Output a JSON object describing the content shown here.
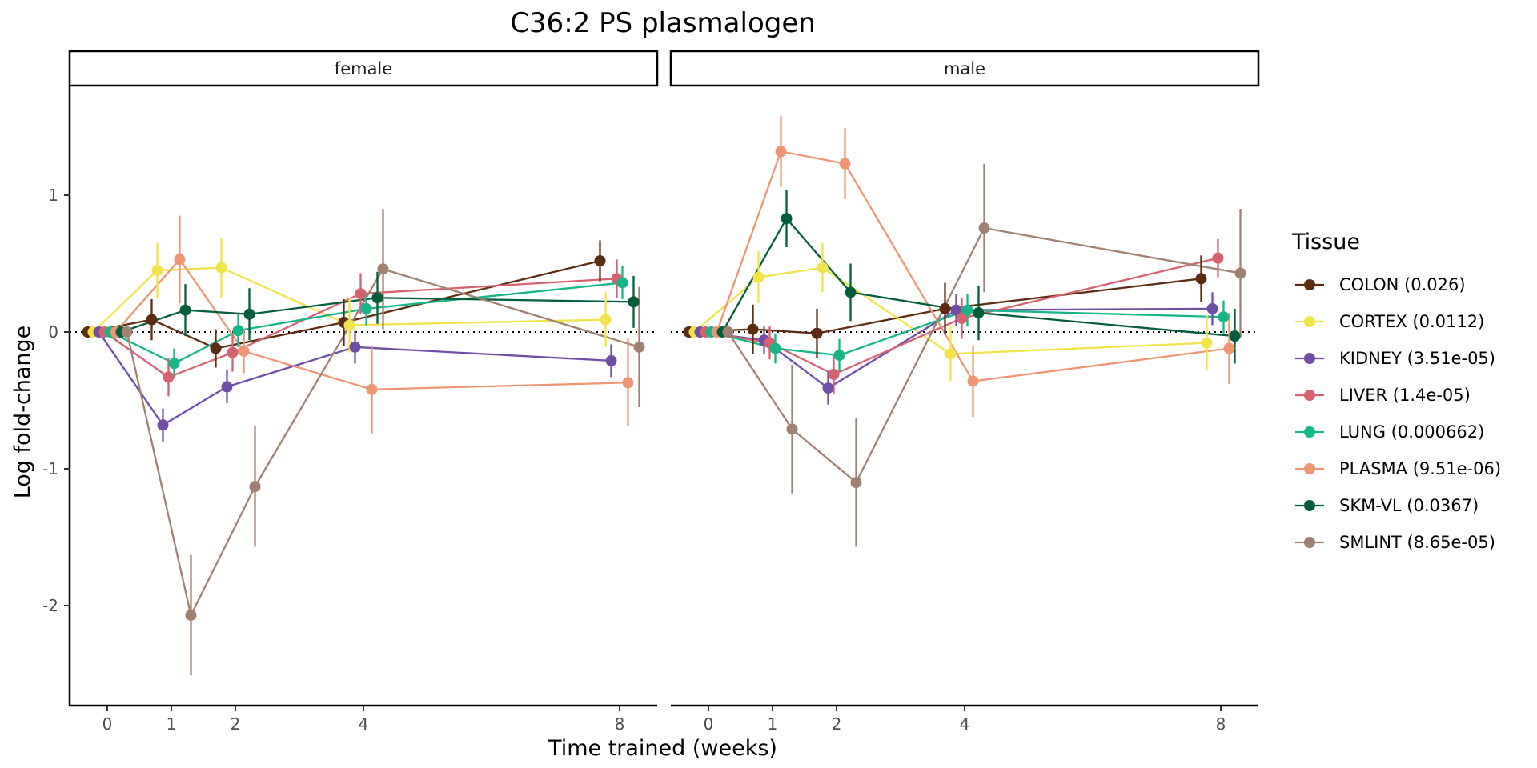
{
  "chart_data": {
    "type": "line",
    "title": "C36:2 PS plasmalogen",
    "xlabel": "Time trained (weeks)",
    "ylabel": "Log fold-change",
    "x_ticks": [
      0,
      1,
      2,
      4,
      8
    ],
    "y_ticks": [
      1,
      0,
      -1,
      -2
    ],
    "ylim": [
      -2.7,
      1.78
    ],
    "reference_line_y": 0,
    "grid": false,
    "facets": [
      "female",
      "male"
    ],
    "legend": {
      "title": "Tissue",
      "position": "right"
    },
    "series": [
      {
        "name": "COLON (0.026)",
        "color": "#5c2c12",
        "female": {
          "x": [
            0,
            1,
            2,
            4,
            8
          ],
          "y": [
            0.0,
            0.09,
            -0.12,
            0.07,
            0.52
          ],
          "err": [
            0.0,
            0.15,
            0.14,
            0.17,
            0.15
          ]
        },
        "male": {
          "x": [
            0,
            1,
            2,
            4,
            8
          ],
          "y": [
            0.0,
            0.02,
            -0.01,
            0.17,
            0.39
          ],
          "err": [
            0.0,
            0.18,
            0.18,
            0.19,
            0.17
          ]
        }
      },
      {
        "name": "CORTEX (0.0112)",
        "color": "#f0e44a",
        "female": {
          "x": [
            0,
            1,
            2,
            4,
            8
          ],
          "y": [
            0.0,
            0.45,
            0.47,
            0.05,
            0.09
          ],
          "err": [
            0.0,
            0.2,
            0.22,
            0.2,
            0.2
          ]
        },
        "male": {
          "x": [
            0,
            1,
            2,
            4,
            8
          ],
          "y": [
            0.0,
            0.4,
            0.47,
            -0.16,
            -0.08
          ],
          "err": [
            0.0,
            0.19,
            0.18,
            0.2,
            0.2
          ]
        }
      },
      {
        "name": "KIDNEY (3.51e-05)",
        "color": "#6f4ea5",
        "female": {
          "x": [
            0,
            1,
            2,
            4,
            8
          ],
          "y": [
            0.0,
            -0.68,
            -0.4,
            -0.11,
            -0.21
          ],
          "err": [
            0.0,
            0.12,
            0.12,
            0.12,
            0.12
          ]
        },
        "male": {
          "x": [
            0,
            1,
            2,
            4,
            8
          ],
          "y": [
            0.0,
            -0.06,
            -0.41,
            0.16,
            0.17
          ],
          "err": [
            0.0,
            0.1,
            0.12,
            0.12,
            0.12
          ]
        }
      },
      {
        "name": "LIVER (1.4e-05)",
        "color": "#d6626f",
        "female": {
          "x": [
            0,
            1,
            2,
            4,
            8
          ],
          "y": [
            0.0,
            -0.33,
            -0.15,
            0.28,
            0.39
          ],
          "err": [
            0.0,
            0.14,
            0.14,
            0.15,
            0.14
          ]
        },
        "male": {
          "x": [
            0,
            1,
            2,
            4,
            8
          ],
          "y": [
            0.0,
            -0.08,
            -0.31,
            0.1,
            0.54
          ],
          "err": [
            0.0,
            0.12,
            0.14,
            0.15,
            0.14
          ]
        }
      },
      {
        "name": "LUNG (0.000662)",
        "color": "#17b689",
        "female": {
          "x": [
            0,
            1,
            2,
            4,
            8
          ],
          "y": [
            0.0,
            -0.23,
            0.01,
            0.17,
            0.36
          ],
          "err": [
            0.0,
            0.11,
            0.12,
            0.12,
            0.12
          ]
        },
        "male": {
          "x": [
            0,
            1,
            2,
            4,
            8
          ],
          "y": [
            0.0,
            -0.12,
            -0.17,
            0.16,
            0.11
          ],
          "err": [
            0.0,
            0.11,
            0.12,
            0.12,
            0.12
          ]
        }
      },
      {
        "name": "PLASMA (9.51e-06)",
        "color": "#ee9674",
        "female": {
          "x": [
            0,
            1,
            2,
            4,
            8
          ],
          "y": [
            0.0,
            0.53,
            -0.14,
            -0.42,
            -0.37
          ],
          "err": [
            0.0,
            0.32,
            0.16,
            0.32,
            0.32
          ]
        },
        "male": {
          "x": [
            0,
            1,
            2,
            4,
            8
          ],
          "y": [
            0.0,
            1.32,
            1.23,
            -0.36,
            -0.12
          ],
          "err": [
            0.0,
            0.26,
            0.26,
            0.26,
            0.26
          ]
        }
      },
      {
        "name": "SKM-VL (0.0367)",
        "color": "#035d3b",
        "female": {
          "x": [
            0,
            1,
            2,
            4,
            8
          ],
          "y": [
            0.0,
            0.16,
            0.13,
            0.25,
            0.22
          ],
          "err": [
            0.0,
            0.19,
            0.19,
            0.19,
            0.19
          ]
        },
        "male": {
          "x": [
            0,
            1,
            2,
            4,
            8
          ],
          "y": [
            0.0,
            0.83,
            0.29,
            0.14,
            -0.03
          ],
          "err": [
            0.0,
            0.21,
            0.21,
            0.2,
            0.2
          ]
        }
      },
      {
        "name": "SMLINT (8.65e-05)",
        "color": "#a08071",
        "female": {
          "x": [
            0,
            1,
            2,
            4,
            8
          ],
          "y": [
            0.0,
            -2.07,
            -1.13,
            0.46,
            -0.11
          ],
          "err": [
            0.0,
            0.44,
            0.44,
            0.44,
            0.44
          ]
        },
        "male": {
          "x": [
            0,
            1,
            2,
            4,
            8
          ],
          "y": [
            0.0,
            -0.71,
            -1.1,
            0.76,
            0.43
          ],
          "err": [
            0.0,
            0.47,
            0.47,
            0.47,
            0.47
          ]
        }
      }
    ]
  }
}
